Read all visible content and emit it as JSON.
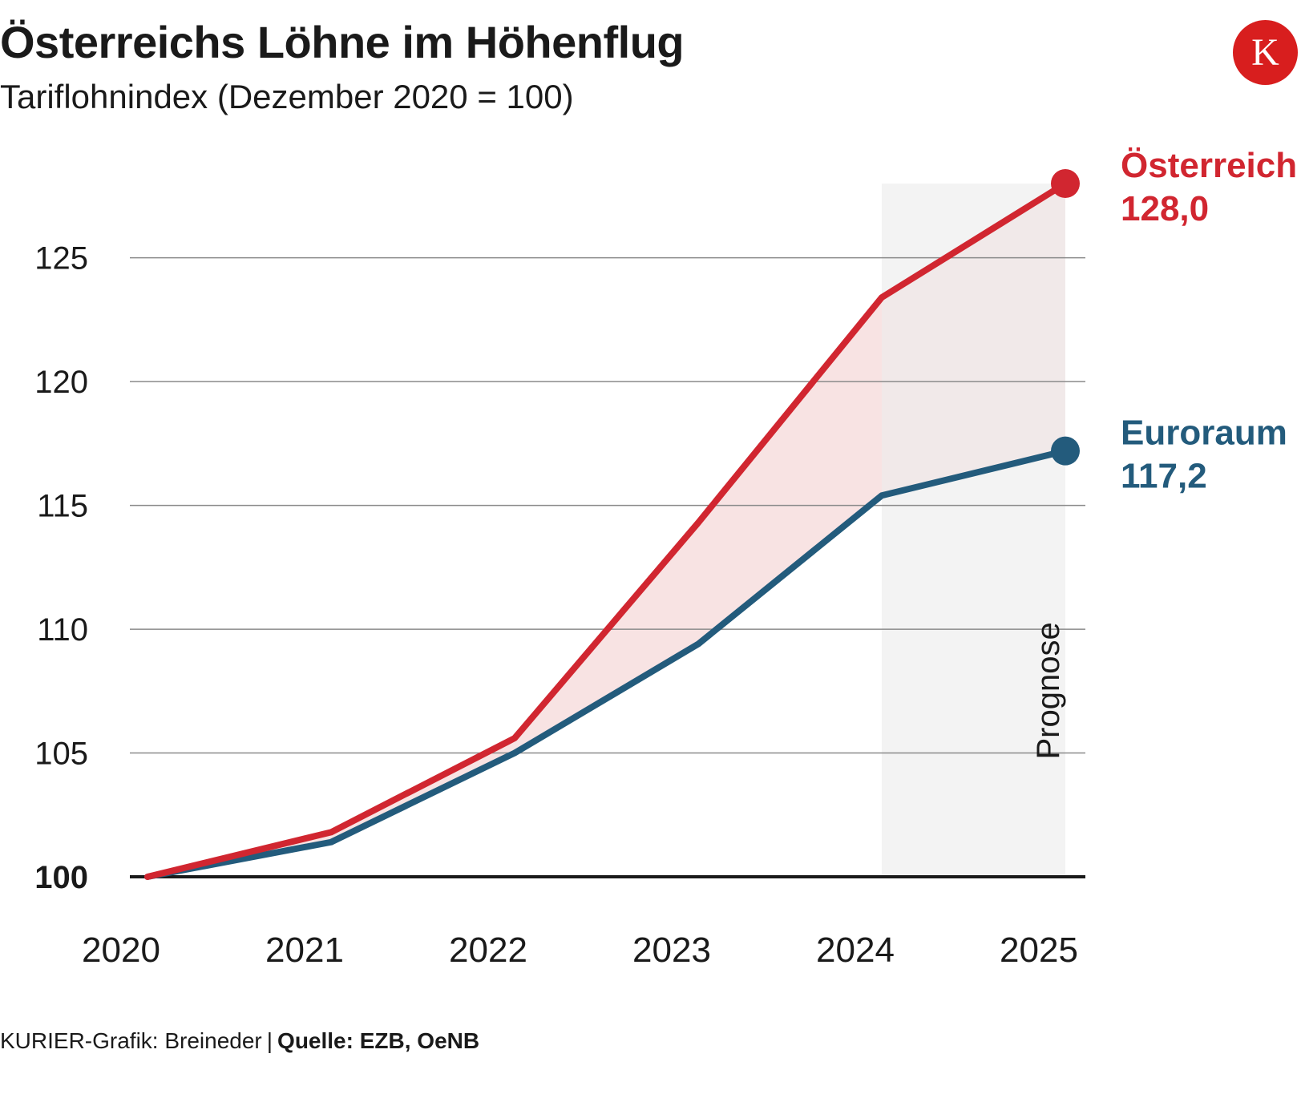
{
  "header": {
    "title": "Österreichs Löhne im Höhenflug",
    "subtitle": "Tariflohnindex (Dezember 2020 = 100)",
    "logo_letter": "K"
  },
  "footer": {
    "credit": "KURIER-Grafik: Breineder",
    "separator": "|",
    "source": "Quelle: EZB, OeNB"
  },
  "colors": {
    "austria": "#d12630",
    "eurozone": "#235b7c",
    "gap_fill": "#f8e3e3",
    "forecast_band": "#ececec",
    "gridline": "#8a8a8a",
    "baseline": "#1a1a1a",
    "text": "#1a1a1a"
  },
  "chart_data": {
    "type": "line",
    "title": "Österreichs Löhne im Höhenflug",
    "subtitle": "Tariflohnindex (Dezember 2020 = 100)",
    "xlabel": "",
    "ylabel": "",
    "categories": [
      "2020",
      "2021",
      "2022",
      "2023",
      "2024",
      "2025"
    ],
    "x": [
      2020,
      2021,
      2022,
      2023,
      2024,
      2025
    ],
    "x_plot": [
      2020.0,
      2021.0,
      2022.0,
      2023.0,
      2024.0,
      2025.0
    ],
    "ylim": [
      100,
      128
    ],
    "yticks": [
      100,
      105,
      110,
      115,
      120,
      125
    ],
    "ytick_labels": [
      "100",
      "105",
      "110",
      "115",
      "120",
      "125"
    ],
    "forecast": {
      "from": 2024.0,
      "to": 2025.0,
      "label": "Prognose"
    },
    "series": [
      {
        "name": "Österreich",
        "values": [
          100.0,
          101.8,
          105.6,
          114.3,
          123.4,
          128.0
        ],
        "end_label": "128,0",
        "color": "#d12630"
      },
      {
        "name": "Euroraum",
        "values": [
          100.0,
          101.4,
          105.0,
          109.4,
          115.4,
          117.2
        ],
        "end_label": "117,2",
        "color": "#235b7c"
      }
    ],
    "grid": true,
    "legend": "direct labels at line ends (right)"
  }
}
